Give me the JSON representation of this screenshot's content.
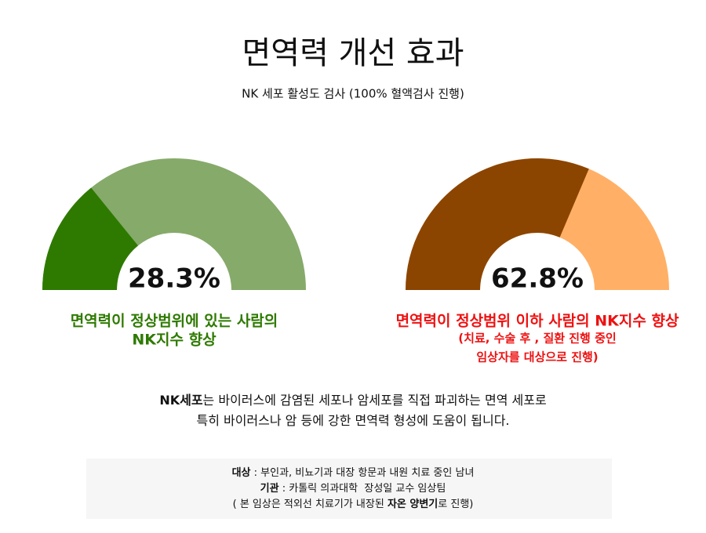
{
  "header": {
    "title": "면역력 개선 효과",
    "subtitle": "NK 세포 활성도 검사 (100% 혈액검사 진행)"
  },
  "chart_data": [
    {
      "type": "gauge",
      "values": [
        28.3
      ],
      "value_labels": [
        "28.3%"
      ],
      "lim": [
        0,
        100
      ],
      "color": "#2e7a00",
      "track_color": "#86aa6a",
      "caption_color": "#2e7a00",
      "caption": [
        "면역력이 정상범위에 있는 사람의",
        "NK지수 향상"
      ],
      "note": []
    },
    {
      "type": "gauge",
      "values": [
        62.8
      ],
      "value_labels": [
        "62.8%"
      ],
      "lim": [
        0,
        100
      ],
      "color": "#8b4500",
      "track_color": "#ffb066",
      "caption_color": "#ee1111",
      "caption": [
        "면역력이 정상범위 이하 사람의 NK지수 향상"
      ],
      "note": [
        "(치료, 수술 후 , 질환 진행 중인",
        "임상자를 대상으로 진행)"
      ]
    }
  ],
  "description": [
    [
      {
        "text": "NK세포",
        "bold": true
      },
      {
        "text": "는 바이러스에 감염된 세포나 암세포를 직접 파괴하는 면역 세포로",
        "bold": false
      }
    ],
    [
      {
        "text": "특히 바이러스나 암 등에 강한 면역력 형성에 도움이 됩니다.",
        "bold": false
      }
    ]
  ],
  "footer": [
    [
      {
        "text": "대상",
        "bold": true
      },
      {
        "text": " : 부인과, 비뇨기과 대장 항문과 내원 치료 중인 남녀",
        "bold": false
      }
    ],
    [
      {
        "text": "기관",
        "bold": true
      },
      {
        "text": " : 카톨릭 의과대학  장성일 교수 임상팀",
        "bold": false
      }
    ],
    [
      {
        "text": "( 본 임상은 적외선 치료기가 내장된 ",
        "bold": false
      },
      {
        "text": "자온 양변기",
        "bold": true
      },
      {
        "text": "로 진행)",
        "bold": false
      }
    ]
  ]
}
